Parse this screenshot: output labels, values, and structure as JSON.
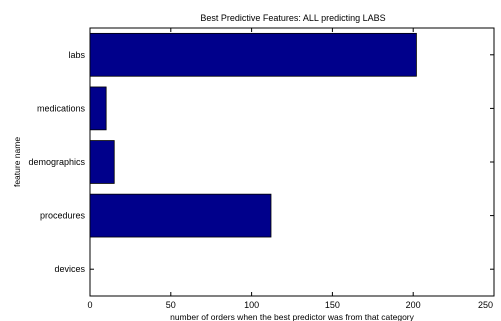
{
  "chart_data": {
    "type": "bar",
    "orientation": "horizontal",
    "title": "Best Predictive Features: ALL predicting LABS",
    "xlabel": "number of orders when the best predictor was from that category",
    "ylabel": "feature name",
    "categories": [
      "labs",
      "medications",
      "demographics",
      "procedures",
      "devices"
    ],
    "values": [
      202,
      10,
      15,
      112,
      0
    ],
    "xlim": [
      0,
      250
    ],
    "xticks": [
      "0",
      "50",
      "100",
      "150",
      "200",
      "250"
    ],
    "bar_color": "#00008b",
    "grid": false
  }
}
